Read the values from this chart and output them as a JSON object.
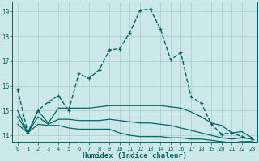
{
  "xlabel": "Humidex (Indice chaleur)",
  "bg_color": "#cce8e8",
  "grid_color": "#aacccc",
  "line_color": "#006666",
  "xlim": [
    -0.5,
    23.5
  ],
  "ylim": [
    13.7,
    19.4
  ],
  "yticks": [
    14,
    15,
    16,
    17,
    18,
    19
  ],
  "xticks": [
    0,
    1,
    2,
    3,
    4,
    5,
    6,
    7,
    8,
    9,
    10,
    11,
    12,
    13,
    14,
    15,
    16,
    17,
    18,
    19,
    20,
    21,
    22,
    23
  ],
  "series": [
    {
      "x": [
        0,
        1,
        2,
        3,
        4,
        5,
        6,
        7,
        8,
        9,
        10,
        11,
        12,
        13,
        14,
        15,
        16,
        17,
        18,
        19,
        20,
        21,
        22,
        23
      ],
      "y": [
        15.85,
        14.1,
        15.0,
        15.35,
        15.6,
        15.0,
        16.5,
        16.3,
        16.65,
        17.45,
        17.5,
        18.15,
        19.05,
        19.1,
        18.3,
        17.05,
        17.35,
        15.55,
        15.3,
        14.45,
        14.05,
        14.1,
        13.95,
        13.85
      ],
      "marker": true,
      "linestyle": "--",
      "linewidth": 1.0
    },
    {
      "x": [
        0,
        1,
        2,
        3,
        4,
        5,
        6,
        7,
        8,
        9,
        10,
        11,
        12,
        13,
        14,
        15,
        16,
        17,
        18,
        19,
        20,
        21,
        22,
        23
      ],
      "y": [
        15.0,
        14.1,
        15.0,
        14.5,
        15.1,
        15.1,
        15.1,
        15.1,
        15.15,
        15.2,
        15.2,
        15.2,
        15.2,
        15.2,
        15.2,
        15.15,
        15.1,
        14.95,
        14.75,
        14.5,
        14.4,
        14.1,
        14.15,
        13.9
      ],
      "marker": false,
      "linestyle": "-",
      "linewidth": 0.9
    },
    {
      "x": [
        0,
        1,
        2,
        3,
        4,
        5,
        6,
        7,
        8,
        9,
        10,
        11,
        12,
        13,
        14,
        15,
        16,
        17,
        18,
        19,
        20,
        21,
        22,
        23
      ],
      "y": [
        14.75,
        14.1,
        14.75,
        14.45,
        14.65,
        14.65,
        14.6,
        14.6,
        14.6,
        14.65,
        14.6,
        14.55,
        14.5,
        14.5,
        14.45,
        14.4,
        14.3,
        14.2,
        14.1,
        14.0,
        13.9,
        13.85,
        13.9,
        13.85
      ],
      "marker": false,
      "linestyle": "-",
      "linewidth": 0.9
    },
    {
      "x": [
        0,
        1,
        2,
        3,
        4,
        5,
        6,
        7,
        8,
        9,
        10,
        11,
        12,
        13,
        14,
        15,
        16,
        17,
        18,
        19,
        20,
        21,
        22,
        23
      ],
      "y": [
        14.45,
        14.1,
        14.45,
        14.4,
        14.4,
        14.3,
        14.25,
        14.25,
        14.25,
        14.25,
        14.1,
        14.0,
        13.95,
        13.95,
        13.95,
        13.9,
        13.9,
        13.85,
        13.85,
        13.8,
        13.75,
        13.7,
        13.75,
        13.75
      ],
      "marker": false,
      "linestyle": "-",
      "linewidth": 0.9
    }
  ]
}
